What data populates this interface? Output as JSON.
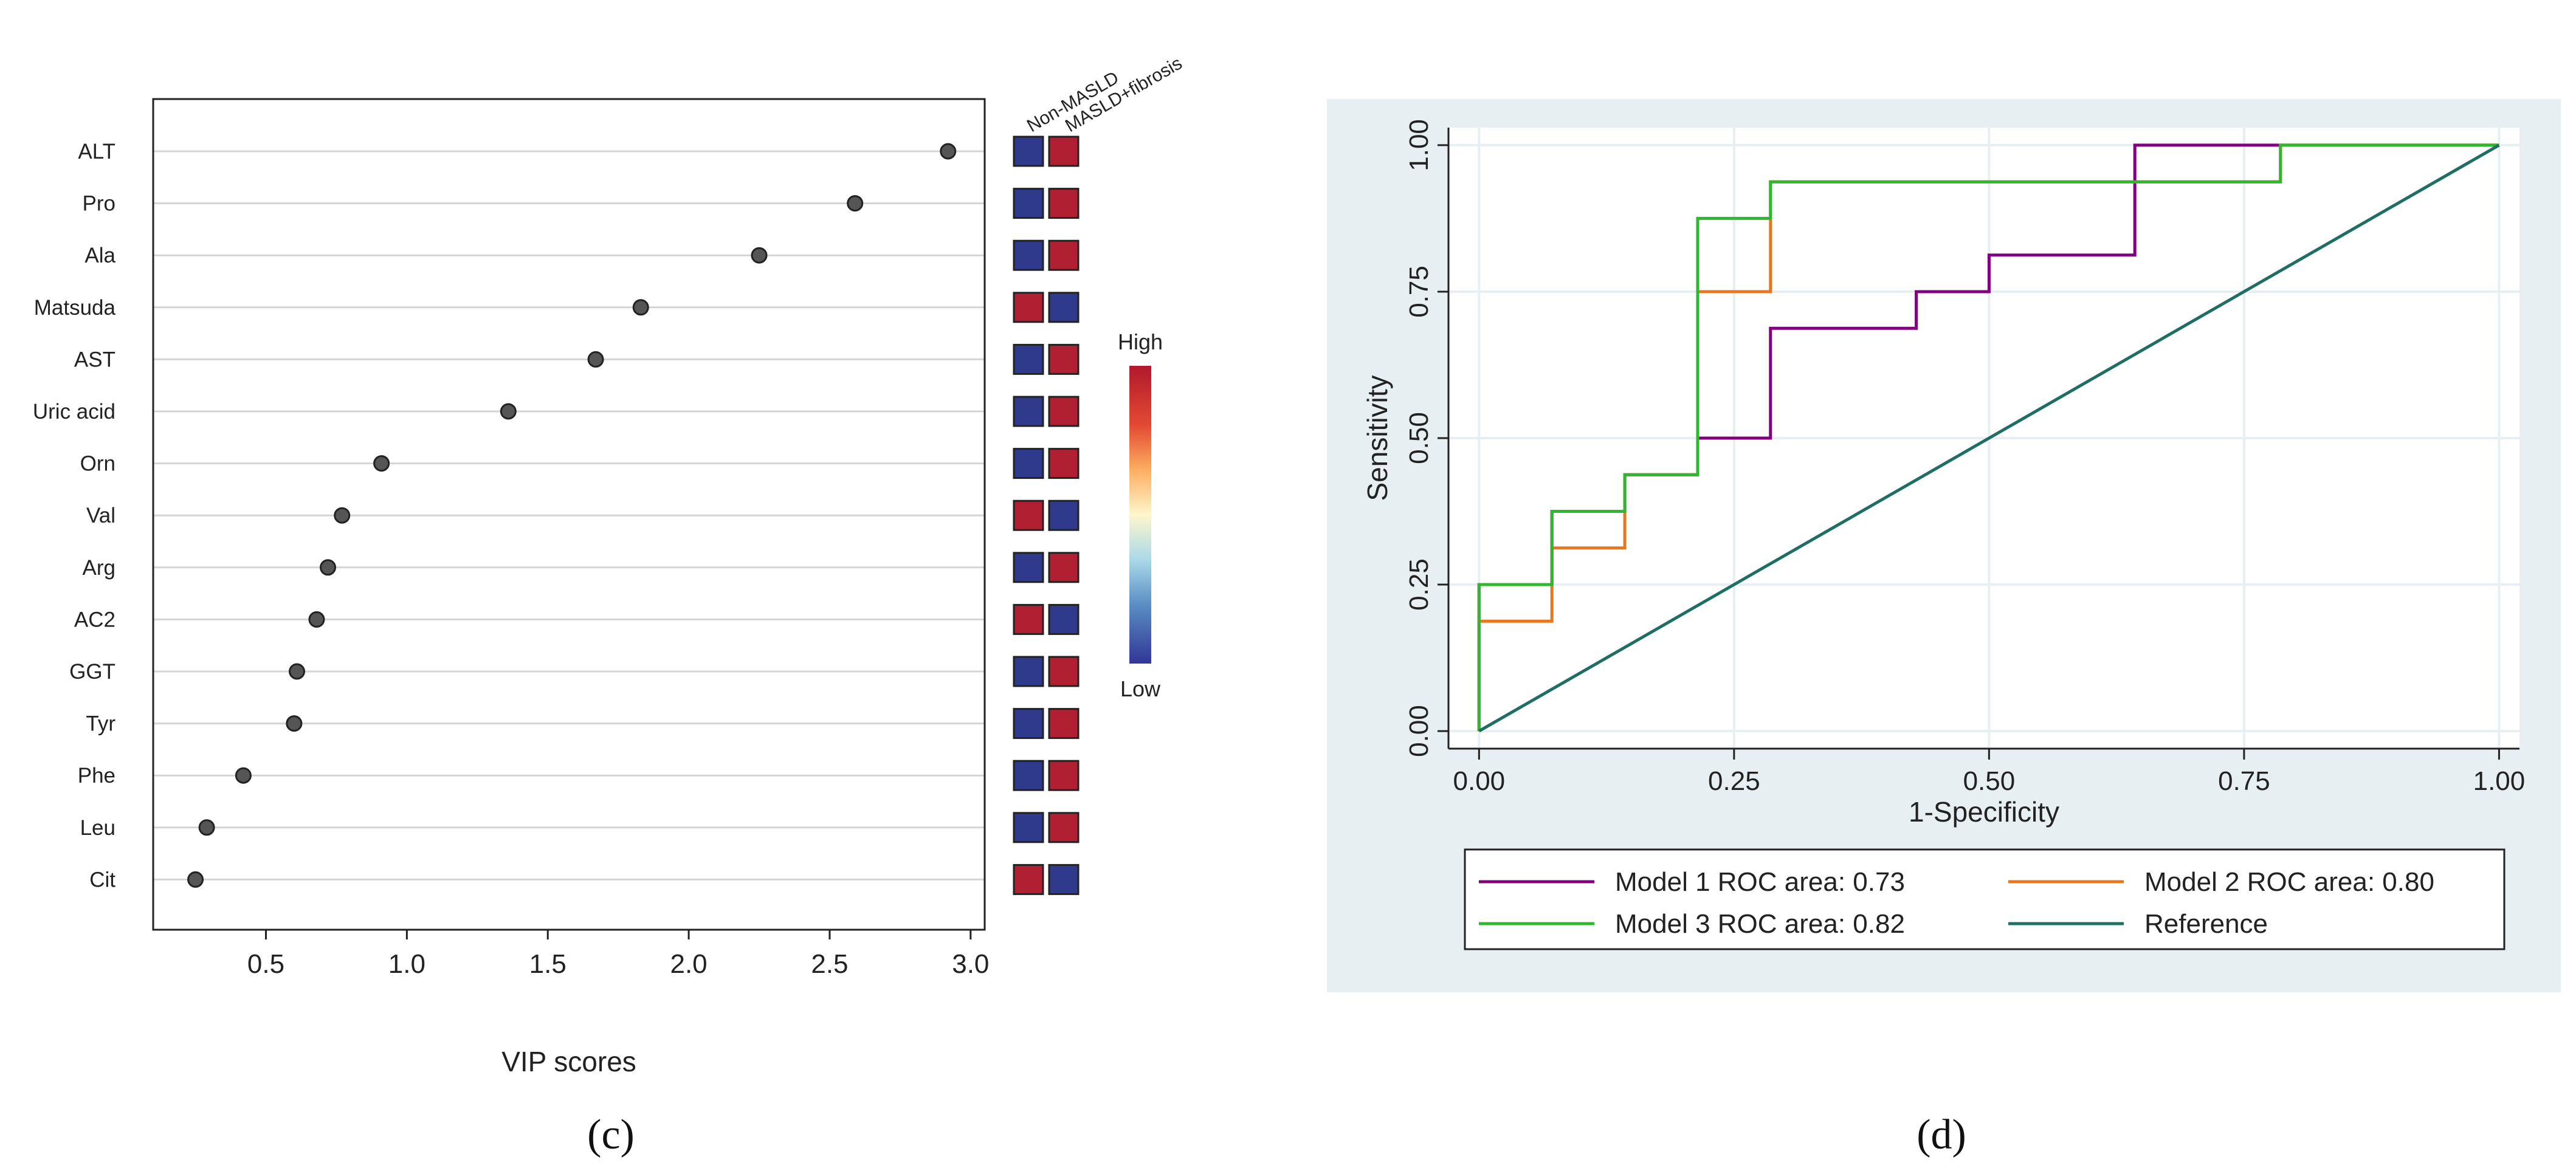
{
  "chart_data": [
    {
      "type": "scatter",
      "panel_label": "(c)",
      "xlabel": "VIP scores",
      "xlim": [
        0.1,
        3.05
      ],
      "xticks": [
        0.5,
        1.0,
        1.5,
        2.0,
        2.5,
        3.0
      ],
      "xtick_labels": [
        "0.5",
        "1.0",
        "1.5",
        "2.0",
        "2.5",
        "3.0"
      ],
      "grid": "horizontal",
      "heatmap_columns": [
        "Non-MASLD",
        "MASLD+fibrosis"
      ],
      "colorbar": {
        "high_label": "High",
        "low_label": "Low",
        "high_color": "#b2182b",
        "low_color": "#313695"
      },
      "colors": {
        "high": "#b01f32",
        "low": "#303a8c",
        "point": "#555555"
      },
      "points": [
        {
          "label": "ALT",
          "x": 2.92,
          "heat": [
            "low",
            "high"
          ]
        },
        {
          "label": "Pro",
          "x": 2.59,
          "heat": [
            "low",
            "high"
          ]
        },
        {
          "label": "Ala",
          "x": 2.25,
          "heat": [
            "low",
            "high"
          ]
        },
        {
          "label": "Matsuda",
          "x": 1.83,
          "heat": [
            "high",
            "low"
          ]
        },
        {
          "label": "AST",
          "x": 1.67,
          "heat": [
            "low",
            "high"
          ]
        },
        {
          "label": "Uric acid",
          "x": 1.36,
          "heat": [
            "low",
            "high"
          ]
        },
        {
          "label": "Orn",
          "x": 0.91,
          "heat": [
            "low",
            "high"
          ]
        },
        {
          "label": "Val",
          "x": 0.77,
          "heat": [
            "high",
            "low"
          ]
        },
        {
          "label": "Arg",
          "x": 0.72,
          "heat": [
            "low",
            "high"
          ]
        },
        {
          "label": "AC2",
          "x": 0.68,
          "heat": [
            "high",
            "low"
          ]
        },
        {
          "label": "GGT",
          "x": 0.61,
          "heat": [
            "low",
            "high"
          ]
        },
        {
          "label": "Tyr",
          "x": 0.6,
          "heat": [
            "low",
            "high"
          ]
        },
        {
          "label": "Phe",
          "x": 0.42,
          "heat": [
            "low",
            "high"
          ]
        },
        {
          "label": "Leu",
          "x": 0.29,
          "heat": [
            "low",
            "high"
          ]
        },
        {
          "label": "Cit",
          "x": 0.25,
          "heat": [
            "high",
            "low"
          ]
        }
      ]
    },
    {
      "type": "line",
      "panel_label": "(d)",
      "xlabel": "1-Specificity",
      "ylabel": "Sensitivity",
      "xlim": [
        -0.03,
        1.02
      ],
      "ylim": [
        -0.03,
        1.03
      ],
      "xticks": [
        0,
        0.25,
        0.5,
        0.75,
        1.0
      ],
      "xtick_labels": [
        "0.00",
        "0.25",
        "0.50",
        "0.75",
        "1.00"
      ],
      "yticks": [
        0,
        0.25,
        0.5,
        0.75,
        1.0
      ],
      "ytick_labels": [
        "0.00",
        "0.25",
        "0.50",
        "0.75",
        "1.00"
      ],
      "grid": true,
      "legend_position": "bottom",
      "series": [
        {
          "name": "Model 1 ROC area: 0.73",
          "color": "#800080",
          "x": [
            0,
            0,
            0.0714,
            0.0714,
            0.1429,
            0.1429,
            0.2143,
            0.2143,
            0.2857,
            0.2857,
            0.4286,
            0.4286,
            0.5,
            0.5,
            0.6429,
            0.6429,
            1.0
          ],
          "y": [
            0,
            0.25,
            0.25,
            0.375,
            0.375,
            0.4375,
            0.4375,
            0.5,
            0.5,
            0.6875,
            0.6875,
            0.75,
            0.75,
            0.8125,
            0.8125,
            1.0,
            1.0
          ]
        },
        {
          "name": "Model 2 ROC area: 0.80",
          "color": "#e8761a",
          "x": [
            0,
            0,
            0.0714,
            0.0714,
            0.1429,
            0.1429,
            0.2143,
            0.2143,
            0.2857,
            0.2857,
            0.7857,
            0.7857,
            1.0
          ],
          "y": [
            0,
            0.1875,
            0.1875,
            0.3125,
            0.3125,
            0.4375,
            0.4375,
            0.75,
            0.75,
            0.9375,
            0.9375,
            1.0,
            1.0
          ]
        },
        {
          "name": "Model 3 ROC area: 0.82",
          "color": "#2eb82e",
          "x": [
            0,
            0,
            0.0714,
            0.0714,
            0.1429,
            0.1429,
            0.2143,
            0.2143,
            0.2857,
            0.2857,
            0.7857,
            0.7857,
            1.0
          ],
          "y": [
            0,
            0.25,
            0.25,
            0.375,
            0.375,
            0.4375,
            0.4375,
            0.875,
            0.875,
            0.9375,
            0.9375,
            1.0,
            1.0
          ]
        },
        {
          "name": "Reference",
          "color": "#1f6e63",
          "x": [
            0,
            1.0
          ],
          "y": [
            0,
            1.0
          ]
        }
      ]
    }
  ]
}
